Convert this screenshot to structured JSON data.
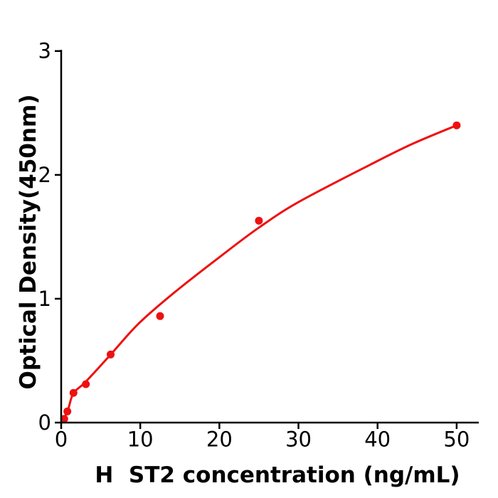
{
  "figure": {
    "background": "#ffffff",
    "axis_color": "#000000",
    "accent_color": "#ee1111"
  },
  "chart_data": {
    "type": "scatter",
    "title": "",
    "xlabel": "H  ST2 concentration (ng/mL)",
    "ylabel": "Optical Density(450nm)",
    "xlim": [
      0,
      52.8
    ],
    "ylim": [
      0,
      3.01
    ],
    "x_ticks": [
      0,
      10,
      20,
      30,
      40,
      50
    ],
    "y_ticks": [
      0,
      1,
      2,
      3
    ],
    "grid": false,
    "legend": "none",
    "series": [
      {
        "name": "standard-points",
        "type": "scatter",
        "marker": "circle",
        "color": "#ee1111",
        "x": [
          0.39,
          0.78,
          1.56,
          3.125,
          6.25,
          12.5,
          25,
          50
        ],
        "y": [
          0.03,
          0.09,
          0.24,
          0.31,
          0.55,
          0.86,
          1.63,
          2.4
        ]
      },
      {
        "name": "fit-curve",
        "type": "line",
        "color": "#ee1111",
        "x": [
          0,
          0.8,
          1.53,
          3.06,
          6.2,
          9.8,
          14.3,
          20.1,
          24.9,
          30.0,
          39.0,
          44.4,
          50.0
        ],
        "y": [
          0,
          0.09,
          0.235,
          0.327,
          0.545,
          0.8,
          1.05,
          1.34,
          1.57,
          1.78,
          2.08,
          2.25,
          2.4
        ]
      }
    ]
  }
}
